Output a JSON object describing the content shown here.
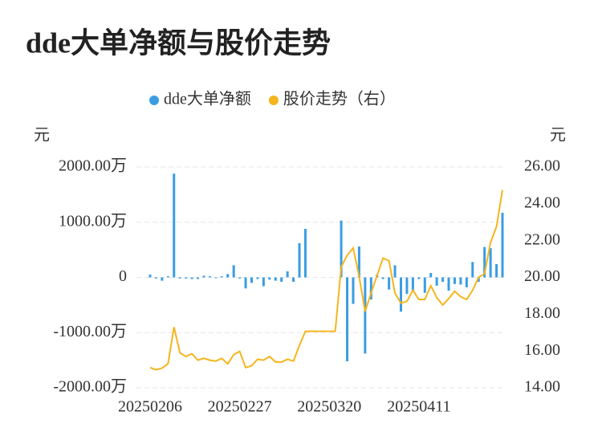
{
  "chart_data": {
    "type": "combo",
    "title": "dde大单净额与股价走势",
    "y_unit": "元",
    "y2_unit": "元",
    "categories": [
      "20250206",
      null,
      null,
      null,
      null,
      null,
      null,
      null,
      null,
      null,
      null,
      null,
      null,
      null,
      null,
      "20250227",
      null,
      null,
      null,
      null,
      null,
      null,
      null,
      null,
      null,
      null,
      null,
      null,
      null,
      null,
      "20250320",
      null,
      null,
      null,
      null,
      null,
      null,
      null,
      null,
      null,
      null,
      null,
      null,
      null,
      null,
      "20250411",
      null,
      null,
      null,
      null,
      null,
      null,
      null,
      null,
      null,
      null,
      null,
      null,
      null,
      null
    ],
    "series": [
      {
        "name": "dde大单净额",
        "type": "bar",
        "color": "#3a9de2",
        "values": [
          50,
          -20,
          -60,
          20,
          1880,
          -20,
          -20,
          -30,
          -30,
          30,
          20,
          -10,
          20,
          60,
          220,
          -20,
          -200,
          -100,
          -30,
          -160,
          -40,
          -60,
          -80,
          110,
          -80,
          620,
          880,
          null,
          null,
          null,
          null,
          null,
          1030,
          -1520,
          -480,
          560,
          -1380,
          -400,
          50,
          -30,
          -220,
          220,
          -620,
          -300,
          -240,
          -30,
          -280,
          80,
          -150,
          -80,
          -240,
          -120,
          -130,
          -180,
          280,
          -80,
          550,
          530,
          240,
          1170
        ]
      },
      {
        "name": "股价走势（右）",
        "type": "line",
        "axis": "y2",
        "color": "#f5b51e",
        "values": [
          15.1,
          14.98,
          15.07,
          15.3,
          17.3,
          15.9,
          15.7,
          15.85,
          15.5,
          15.6,
          15.5,
          15.45,
          15.6,
          15.3,
          15.8,
          15.98,
          15.1,
          15.2,
          15.55,
          15.5,
          15.7,
          15.4,
          15.4,
          15.55,
          15.45,
          16.3,
          17.07,
          17.07,
          17.07,
          17.07,
          17.07,
          17.07,
          20.57,
          21.2,
          21.6,
          20.05,
          18.15,
          19.15,
          20.1,
          21.05,
          20.9,
          19.15,
          18.6,
          18.7,
          19.3,
          18.8,
          18.8,
          19.55,
          18.9,
          18.5,
          18.85,
          19.25,
          18.95,
          18.8,
          19.3,
          20.0,
          20.2,
          21.9,
          22.75,
          24.75
        ]
      }
    ],
    "ylim": [
      -2000,
      2000
    ],
    "yticks": [
      {
        "value": 2000,
        "label": "2000.00万"
      },
      {
        "value": 1000,
        "label": "1000.00万"
      },
      0,
      {
        "value": -1000,
        "label": "-1000.00万"
      },
      {
        "value": -2000,
        "label": "-2000.00万"
      }
    ],
    "y2lim": [
      14,
      26
    ],
    "y2ticks": [
      {
        "value": 26,
        "label": "26.00"
      },
      {
        "value": 24,
        "label": "24.00"
      },
      {
        "value": 22,
        "label": "22.00"
      },
      {
        "value": 20,
        "label": "20.00"
      },
      {
        "value": 18,
        "label": "18.00"
      },
      {
        "value": 16,
        "label": "16.00"
      },
      {
        "value": 14,
        "label": "14.00"
      }
    ],
    "grid": true
  }
}
